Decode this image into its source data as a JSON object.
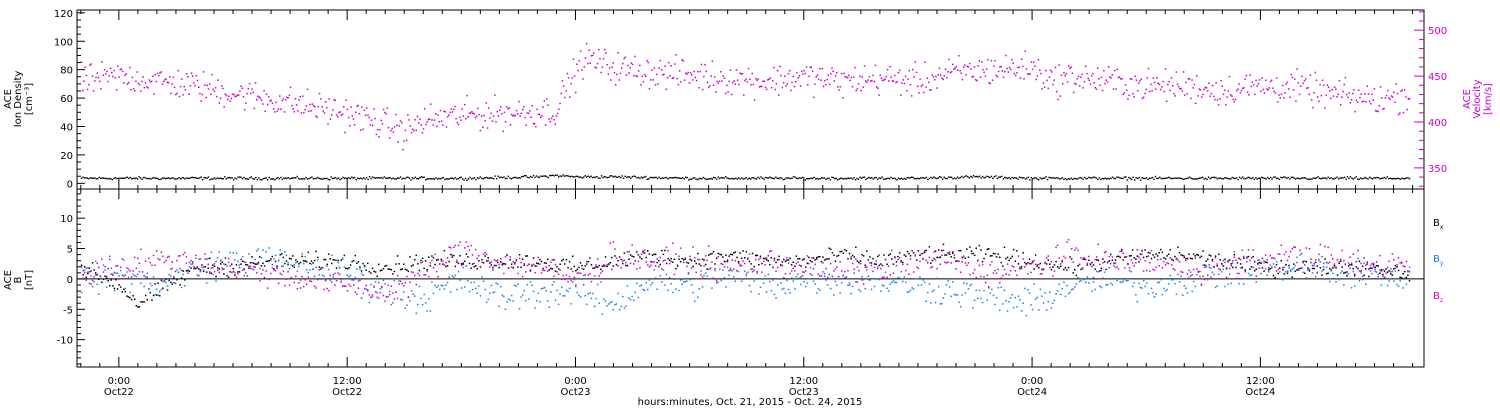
{
  "figure": {
    "xlabel": "hours:minutes, Oct. 21, 2015 - Oct. 24, 2015",
    "time_ticks": [
      {
        "hour": 24,
        "time": "0:00",
        "date": "Oct22"
      },
      {
        "hour": 36,
        "time": "12:00",
        "date": "Oct22"
      },
      {
        "hour": 48,
        "time": "0:00",
        "date": "Oct23"
      },
      {
        "hour": 60,
        "time": "12:00",
        "date": "Oct23"
      },
      {
        "hour": 72,
        "time": "0:00",
        "date": "Oct24"
      },
      {
        "hour": 84,
        "time": "12:00",
        "date": "Oct24"
      }
    ]
  },
  "colors": {
    "axis": "#000000",
    "density": "#000000",
    "velocity": "#cc00cc",
    "bx": "#000000",
    "by": "#1a80e6",
    "bz": "#cc00cc"
  },
  "chart_data": [
    {
      "type": "scatter",
      "name": "ACE ion density and velocity",
      "x_unit": "hours since Oct 21 00:00",
      "xlim": [
        21.8,
        92.6
      ],
      "left_axis": {
        "label_lines": [
          "ACE",
          "Ion Density",
          "[cm⁻³]"
        ],
        "ylim": [
          -4,
          122
        ],
        "ticks": [
          0,
          20,
          40,
          60,
          80,
          100,
          120
        ]
      },
      "right_axis": {
        "label_lines": [
          "ACE",
          "Velocity",
          "[km/s]"
        ],
        "ylim": [
          327,
          522
        ],
        "ticks": [
          350,
          400,
          450,
          500
        ]
      },
      "series": [
        {
          "name": "Ion Density",
          "axis": "left",
          "color_key": "density",
          "noise": 0.7,
          "x": [
            22.0,
            26.0,
            30.0,
            34.0,
            38.0,
            42.0,
            46.0,
            47.0,
            48.0,
            50.0,
            54.0,
            58.0,
            62.0,
            66.0,
            69.0,
            72.0,
            76.0,
            80.0,
            84.0,
            88.0,
            91.8
          ],
          "y": [
            4,
            4,
            4,
            4,
            4,
            4,
            5,
            6,
            5,
            5,
            4,
            4,
            4,
            4,
            5,
            4,
            4,
            4,
            4,
            4,
            4
          ]
        },
        {
          "name": "Velocity",
          "axis": "right",
          "color_key": "velocity",
          "noise": 12,
          "x": [
            22.0,
            24.0,
            26.0,
            28.0,
            30.0,
            32.0,
            34.0,
            36.0,
            37.0,
            38.0,
            39.0,
            40.0,
            42.0,
            44.0,
            46.0,
            47.0,
            47.5,
            48.5,
            50.0,
            52.0,
            54.0,
            56.0,
            58.0,
            60.0,
            62.0,
            64.0,
            66.0,
            68.0,
            70.0,
            72.0,
            73.0,
            74.0,
            76.0,
            78.0,
            80.0,
            82.0,
            84.0,
            86.0,
            88.0,
            90.0,
            91.8
          ],
          "y": [
            445,
            450,
            445,
            440,
            432,
            425,
            418,
            410,
            404,
            398,
            390,
            402,
            408,
            410,
            412,
            414,
            440,
            470,
            460,
            455,
            452,
            448,
            445,
            450,
            445,
            448,
            445,
            455,
            458,
            460,
            445,
            450,
            445,
            440,
            440,
            435,
            440,
            438,
            430,
            425,
            430
          ]
        }
      ]
    },
    {
      "type": "scatter",
      "name": "ACE magnetic field components",
      "x_unit": "hours since Oct 21 00:00",
      "xlim": [
        21.8,
        92.6
      ],
      "left_axis": {
        "label_lines": [
          "ACE",
          "B",
          "[nT]"
        ],
        "ylim": [
          -14.5,
          14.8
        ],
        "ticks": [
          -10,
          -5,
          0,
          5,
          10
        ]
      },
      "legend": [
        "Bx",
        "By",
        "Bz"
      ],
      "series": [
        {
          "name": "Bx",
          "color_key": "bx",
          "noise": 1.0,
          "x": [
            22.0,
            24.0,
            25.0,
            27.0,
            28.0,
            30.0,
            32.0,
            34.0,
            36.0,
            38.0,
            40.0,
            42.0,
            44.0,
            46.0,
            48.0,
            50.0,
            52.0,
            54.0,
            56.0,
            58.0,
            60.0,
            62.0,
            64.0,
            66.0,
            68.0,
            70.0,
            72.0,
            74.0,
            76.0,
            78.0,
            80.0,
            82.0,
            84.0,
            86.0,
            88.0,
            90.0,
            91.8
          ],
          "y": [
            2,
            -1,
            -4,
            0,
            2,
            2,
            3,
            3,
            3,
            2,
            3,
            3,
            3,
            3,
            2,
            3,
            4,
            3,
            4,
            3,
            3,
            4,
            3,
            4,
            4,
            4,
            3,
            2,
            3,
            4,
            4,
            3,
            2,
            2,
            2,
            2,
            1
          ]
        },
        {
          "name": "By",
          "color_key": "by",
          "noise": 1.8,
          "x": [
            22.0,
            24.0,
            26.0,
            28.0,
            30.0,
            32.0,
            34.0,
            36.0,
            38.0,
            40.0,
            42.0,
            44.0,
            46.0,
            48.0,
            50.0,
            52.0,
            54.0,
            56.0,
            58.0,
            60.0,
            62.0,
            64.0,
            66.0,
            68.0,
            70.0,
            72.0,
            74.0,
            76.0,
            78.0,
            80.0,
            82.0,
            84.0,
            86.0,
            88.0,
            90.0,
            91.8
          ],
          "y": [
            0,
            1,
            -1,
            2,
            3,
            3,
            2,
            1,
            -2,
            -3,
            0,
            -3,
            -2,
            -2,
            -4,
            0,
            -1,
            1,
            -1,
            0,
            0,
            0,
            -1,
            -2,
            -3,
            -4,
            -1,
            0,
            -1,
            0,
            1,
            2,
            2,
            1,
            1,
            0
          ]
        },
        {
          "name": "Bz",
          "color_key": "bz",
          "noise": 1.6,
          "x": [
            22.0,
            24.0,
            26.0,
            28.0,
            30.0,
            32.0,
            34.0,
            36.0,
            38.0,
            40.0,
            42.0,
            44.0,
            46.0,
            48.0,
            50.0,
            52.0,
            54.0,
            56.0,
            58.0,
            60.0,
            62.0,
            64.0,
            66.0,
            68.0,
            70.0,
            72.0,
            74.0,
            76.0,
            78.0,
            80.0,
            82.0,
            84.0,
            86.0,
            88.0,
            90.0,
            91.8
          ],
          "y": [
            1,
            2,
            3,
            3,
            2,
            1,
            0,
            -1,
            -2,
            1,
            5,
            3,
            2,
            0,
            4,
            3,
            3,
            2,
            3,
            2,
            1,
            2,
            3,
            3,
            1,
            2,
            4,
            3,
            3,
            2,
            2,
            3,
            4,
            3,
            2,
            3
          ]
        }
      ]
    }
  ]
}
